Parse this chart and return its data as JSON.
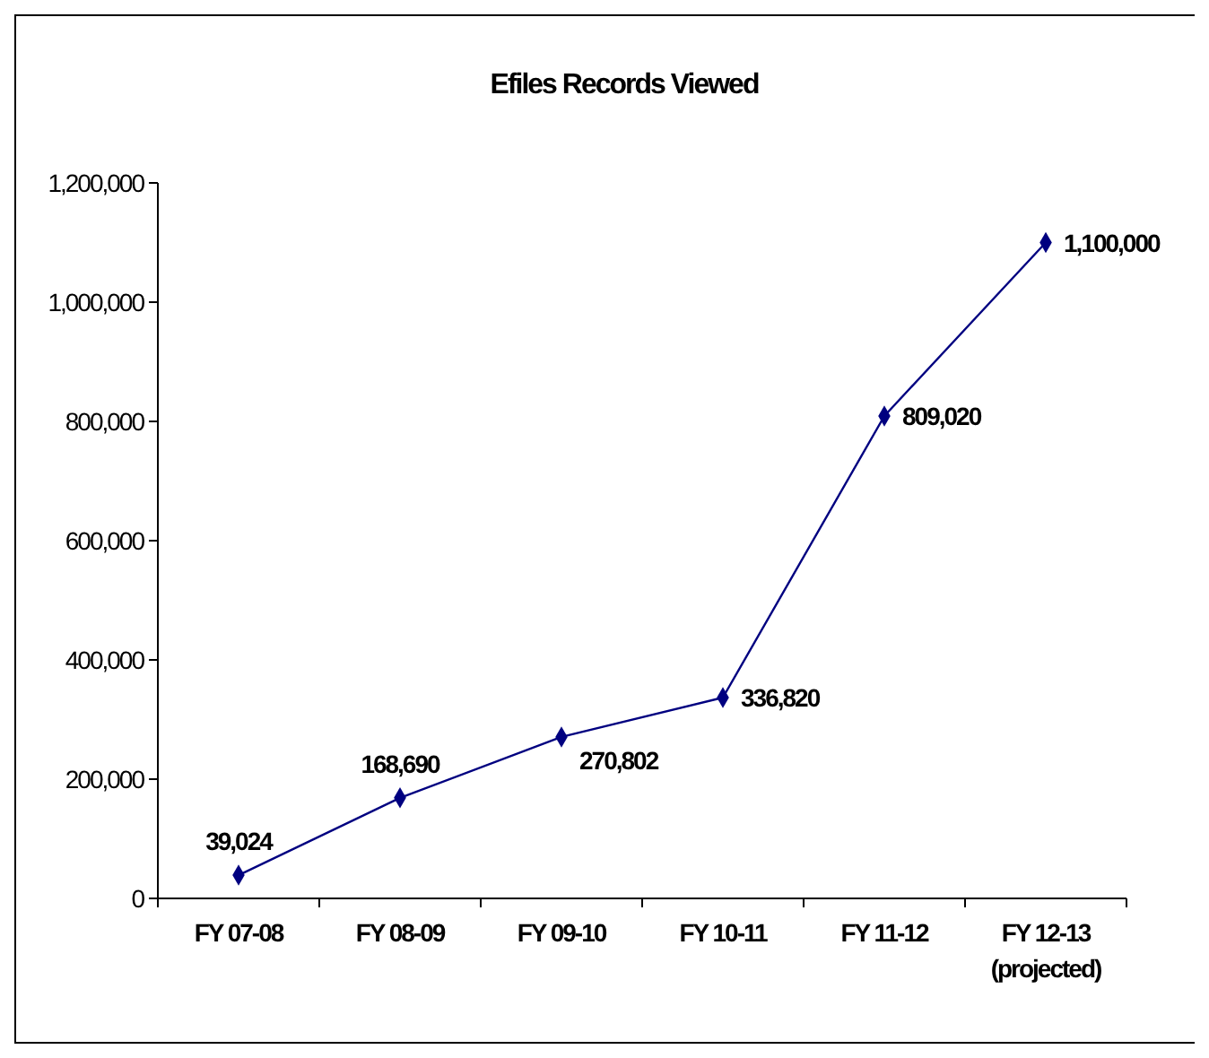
{
  "chart_data": {
    "type": "line",
    "title": "Efiles Records Viewed",
    "categories": [
      "FY 07-08",
      "FY 08-09",
      "FY 09-10",
      "FY 10-11",
      "FY 11-12",
      "FY 12-13\n(projected)"
    ],
    "series": [
      {
        "color": "#000080",
        "values": [
          39024,
          168690,
          270802,
          336820,
          809020,
          1100000
        ],
        "value_labels": [
          "39,024",
          "168,690",
          "270,802",
          "336,820",
          "809,020",
          "1,100,000"
        ]
      }
    ],
    "ylim": [
      0,
      1200000
    ],
    "yticks": [
      {
        "value": 0,
        "label": "0"
      },
      {
        "value": 200000,
        "label": "200,000"
      },
      {
        "value": 400000,
        "label": "400,000"
      },
      {
        "value": 600000,
        "label": "600,000"
      },
      {
        "value": 800000,
        "label": "800,000"
      },
      {
        "value": 1000000,
        "label": "1,000,000"
      },
      {
        "value": 1200000,
        "label": "1,200,000"
      }
    ],
    "marker": "diamond",
    "line_style": "solid",
    "grid": false
  }
}
